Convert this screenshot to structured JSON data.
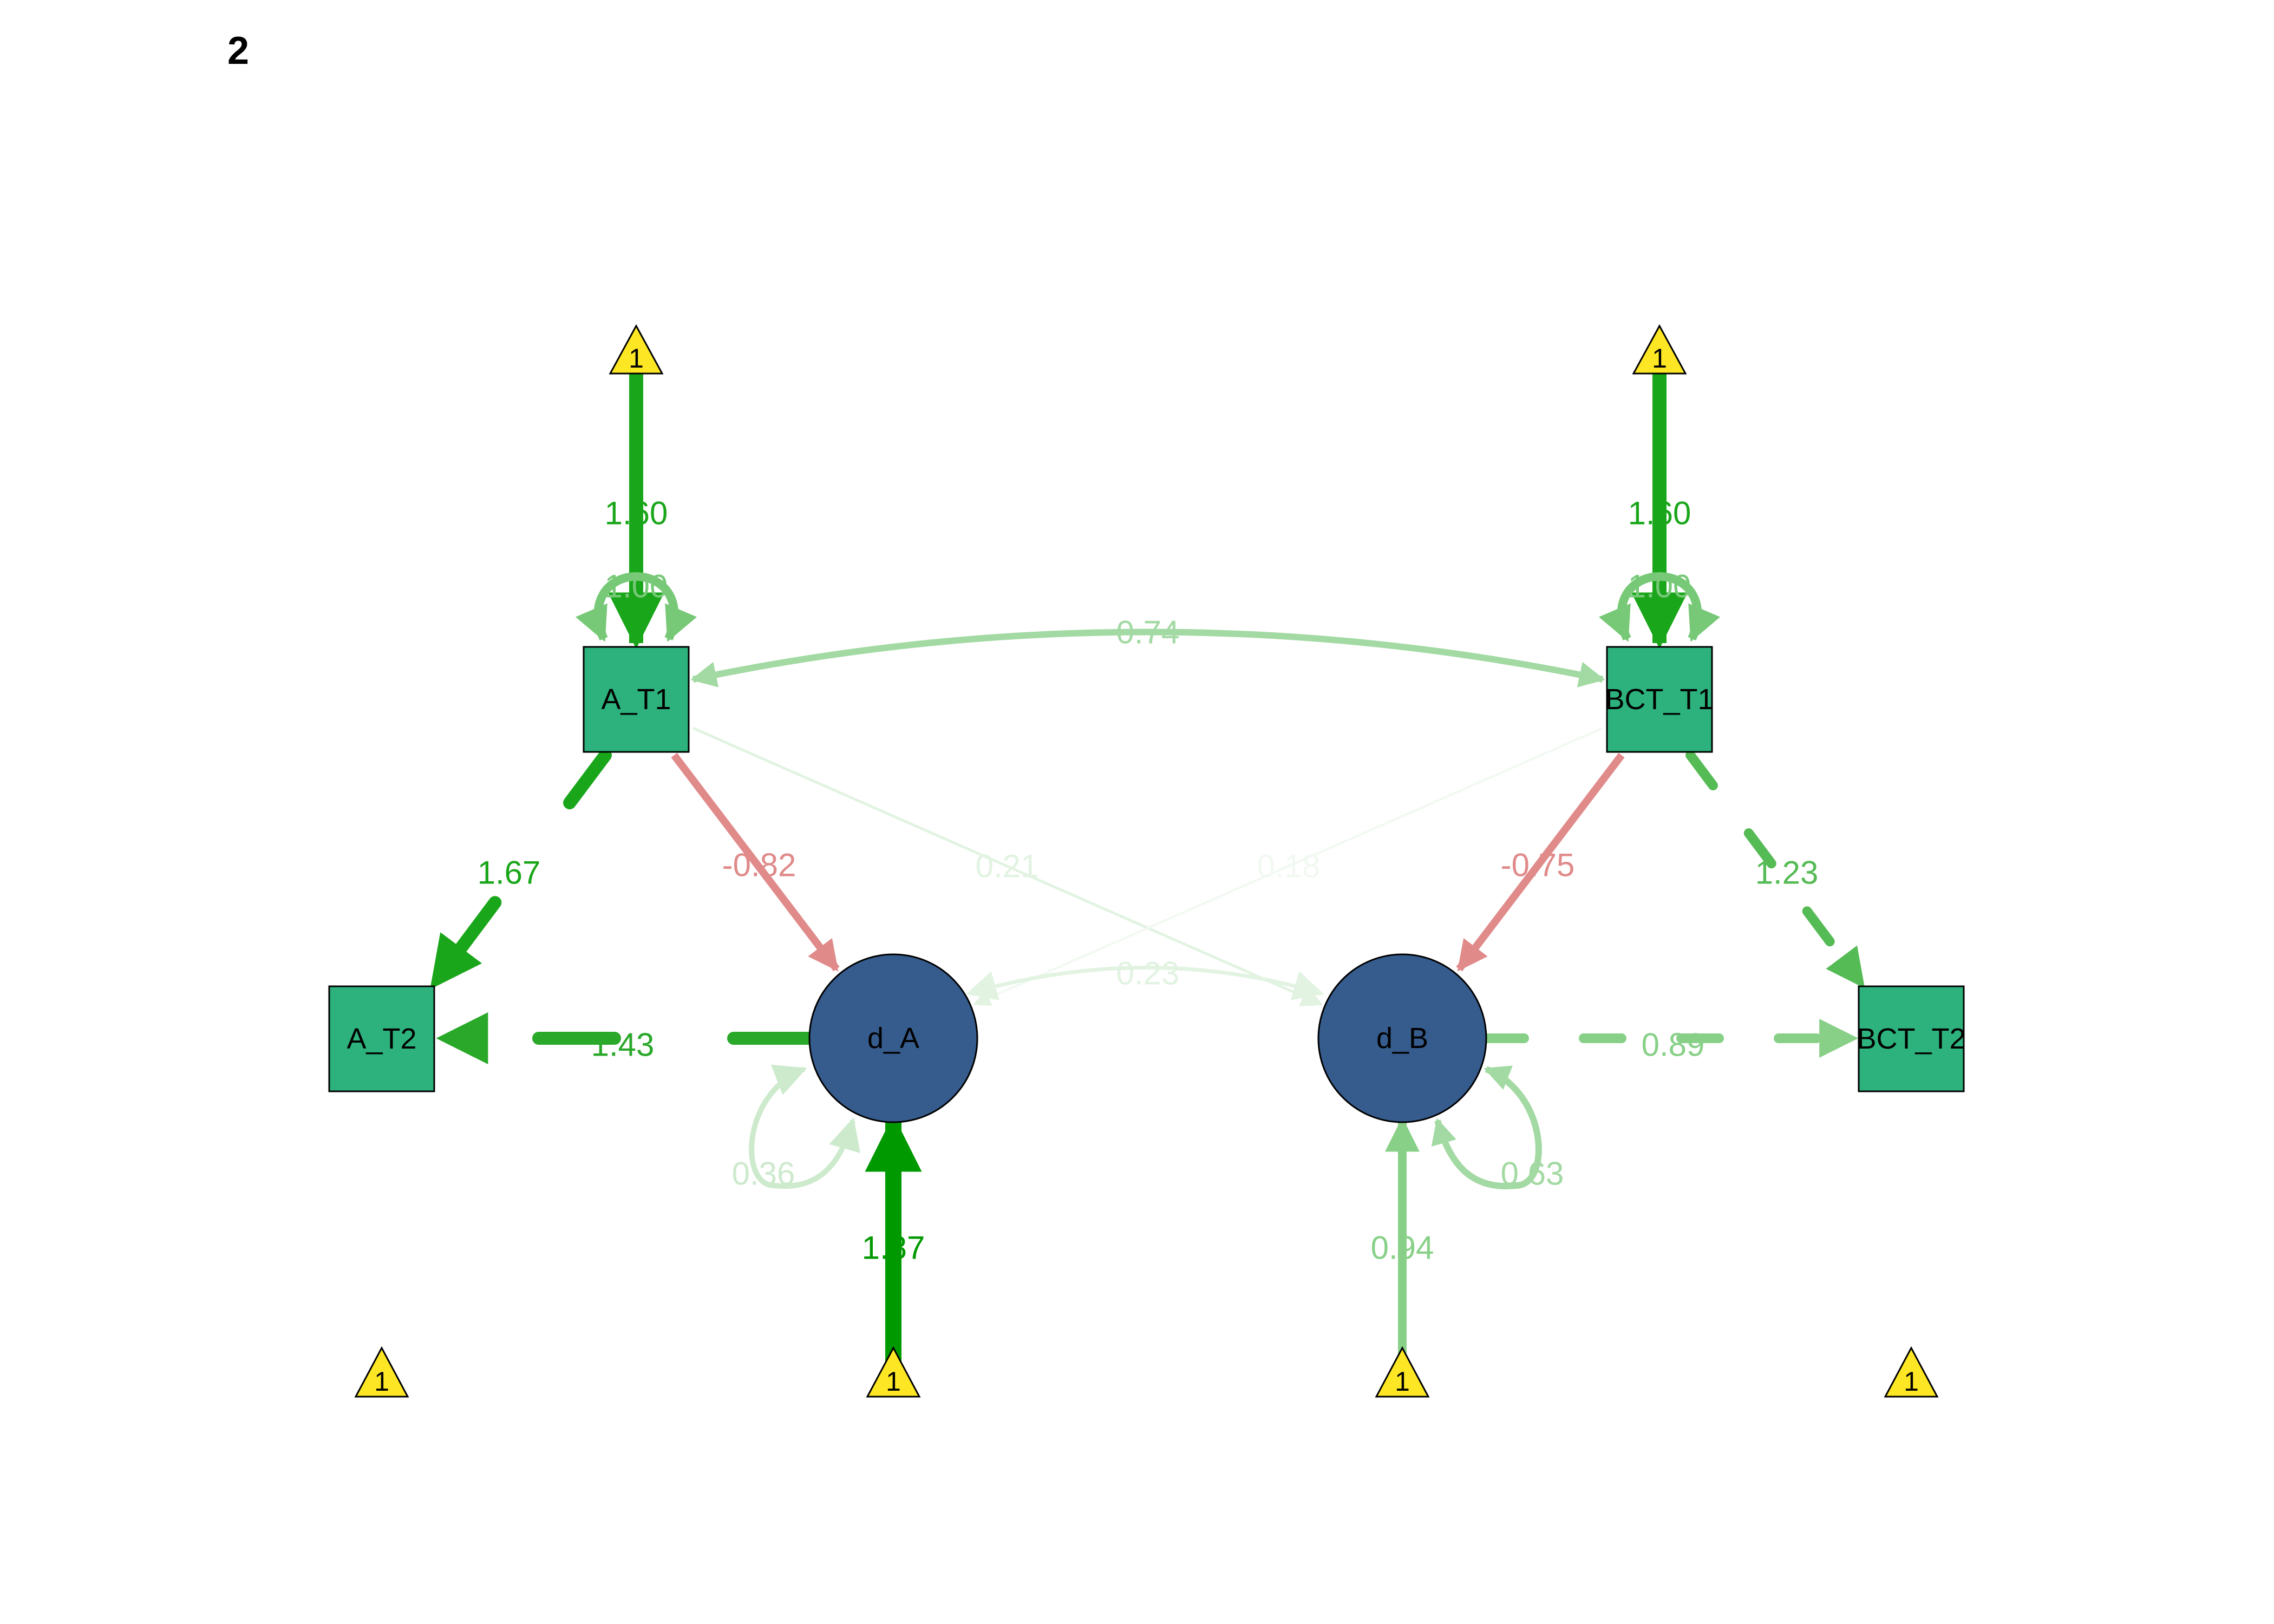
{
  "panel_label": "2",
  "nodes": {
    "A_T1": "A_T1",
    "BCT_T1": "BCT_T1",
    "A_T2": "A_T2",
    "BCT_T2": "BCT_T2",
    "d_A": "d_A",
    "d_B": "d_B"
  },
  "intercept_label": "1",
  "edge_labels": {
    "int_A_T1": "1.60",
    "var_A_T1": "1.00",
    "int_BCT_T1": "1.60",
    "var_BCT_T1": "1.00",
    "cov_T1": "0.74",
    "A_T1_to_A_T2": "1.67",
    "A_T1_to_dA": "-0.82",
    "A_T1_to_dB": "0.21",
    "BCT_T1_to_dA": "0.18",
    "BCT_T1_to_dB": "-0.75",
    "BCT_T1_to_BCT_T2": "1.23",
    "cov_dA_dB": "0.23",
    "dA_to_A_T2": "1.43",
    "dB_to_BCT_T2": "0.89",
    "var_dA": "0.36",
    "var_dB": "0.63",
    "int_dA": "1.87",
    "int_dB": "0.94"
  },
  "colors": {
    "background": "#ffffff",
    "manifest_fill": "#2DB27D",
    "latent_fill": "#365C8D",
    "intercept_fill": "#FDE725",
    "positive_strong": "#009900",
    "negative": "#E08A8A"
  }
}
